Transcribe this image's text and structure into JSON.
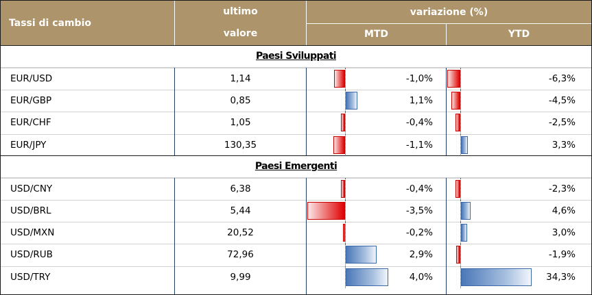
{
  "header": {
    "col1": "Tassi di cambio",
    "col2_line1": "ultimo",
    "col2_line2": "valore",
    "group": "variazione (%)",
    "mtd": "MTD",
    "ytd": "YTD"
  },
  "colors": {
    "header_bg": "#ae946a",
    "negative": "#e00000",
    "positive": "#4a78b8"
  },
  "sections": [
    {
      "title": "Paesi Sviluppati",
      "rows": [
        {
          "pair": "EUR/USD",
          "value": "1,14",
          "mtd": -1.0,
          "mtd_label": "-1,0%",
          "ytd": -6.3,
          "ytd_label": "-6,3%"
        },
        {
          "pair": "EUR/GBP",
          "value": "0,85",
          "mtd": 1.1,
          "mtd_label": "1,1%",
          "ytd": -4.5,
          "ytd_label": "-4,5%"
        },
        {
          "pair": "EUR/CHF",
          "value": "1,05",
          "mtd": -0.4,
          "mtd_label": "-0,4%",
          "ytd": -2.5,
          "ytd_label": "-2,5%"
        },
        {
          "pair": "EUR/JPY",
          "value": "130,35",
          "mtd": -1.1,
          "mtd_label": "-1,1%",
          "ytd": 3.3,
          "ytd_label": "3,3%"
        }
      ]
    },
    {
      "title": "Paesi Emergenti",
      "rows": [
        {
          "pair": "USD/CNY",
          "value": "6,38",
          "mtd": -0.4,
          "mtd_label": "-0,4%",
          "ytd": -2.3,
          "ytd_label": "-2,3%"
        },
        {
          "pair": "USD/BRL",
          "value": "5,44",
          "mtd": -3.5,
          "mtd_label": "-3,5%",
          "ytd": 4.6,
          "ytd_label": "4,6%"
        },
        {
          "pair": "USD/MXN",
          "value": "20,52",
          "mtd": -0.2,
          "mtd_label": "-0,2%",
          "ytd": 3.0,
          "ytd_label": "3,0%"
        },
        {
          "pair": "USD/RUB",
          "value": "72,96",
          "mtd": 2.9,
          "mtd_label": "2,9%",
          "ytd": -1.9,
          "ytd_label": "-1,9%"
        },
        {
          "pair": "USD/TRY",
          "value": "9,99",
          "mtd": 4.0,
          "mtd_label": "4,0%",
          "ytd": 34.3,
          "ytd_label": "34,3%"
        }
      ]
    }
  ]
}
